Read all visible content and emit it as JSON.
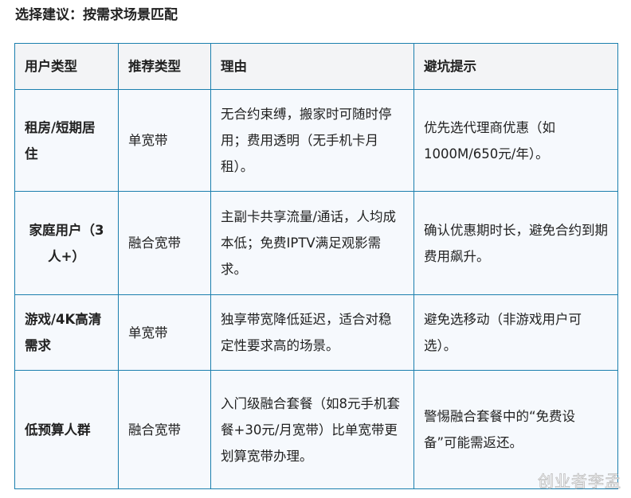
{
  "title": "选择建议：按需求场景匹配",
  "table": {
    "headers": [
      "用户类型",
      "推荐类型",
      "理由",
      "避坑提示"
    ],
    "rows": [
      {
        "user": "租房/短期居住",
        "type": "单宽带",
        "reason": "无合约束缚，搬家时可随时停用；费用透明（无手机卡月租）。",
        "tip": "优先选代理商优惠（如1000M/650元/年）。"
      },
      {
        "user": "家庭用户（3人+）",
        "type": "融合宽带",
        "reason": "主副卡共享流量/通话，人均成本低；免费IPTV满足观影需求。",
        "tip": "确认优惠期时长，避免合约到期费用飙升。"
      },
      {
        "user": "游戏/4K高清需求",
        "type": "单宽带",
        "reason": "独享带宽降低延迟，适合对稳定性要求高的场景。",
        "tip": "避免选移动（非游戏用户可选）。"
      },
      {
        "user": "低预算人群",
        "type": "融合宽带",
        "reason": "入门级融合套餐（如8元手机套餐+30元/月宽带）比单宽带更划算宽带办理。",
        "tip": "警惕融合套餐中的“免费设备”可能需返还。"
      }
    ]
  },
  "watermark": "创业者李孟"
}
